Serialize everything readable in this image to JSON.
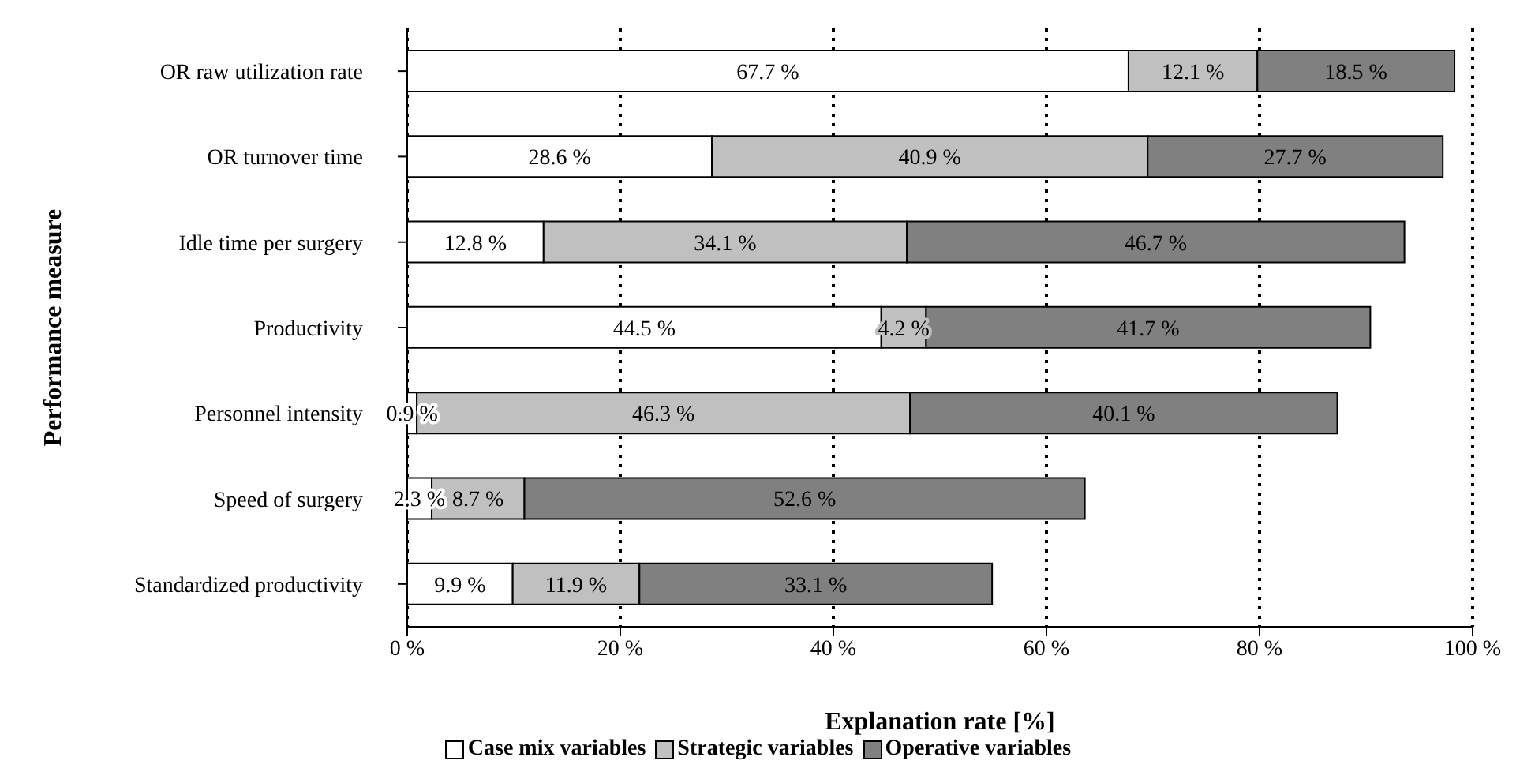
{
  "chart_data": {
    "type": "bar",
    "orientation": "horizontal",
    "stacked": true,
    "xlabel": "Explanation rate [%]",
    "ylabel": "Performance measure",
    "categories": [
      "OR raw utilization rate",
      "OR turnover time",
      "Idle time per surgery",
      "Productivity",
      "Personnel intensity",
      "Speed of surgery",
      "Standardized productivity"
    ],
    "series": [
      {
        "name": "Case mix variables",
        "color": "#ffffff",
        "values": [
          67.7,
          28.6,
          12.8,
          44.5,
          0.9,
          2.3,
          9.9
        ],
        "value_labels": [
          "67.7 %",
          "28.6 %",
          "12.8 %",
          "44.5 %",
          "0.9 %",
          "2.3 %",
          "9.9 %"
        ]
      },
      {
        "name": "Strategic variables",
        "color": "#c0c0c0",
        "values": [
          12.1,
          40.9,
          34.1,
          4.2,
          46.3,
          8.7,
          11.9
        ],
        "value_labels": [
          "12.1 %",
          "40.9 %",
          "34.1 %",
          "4.2 %",
          "46.3 %",
          "8.7 %",
          "11.9 %"
        ]
      },
      {
        "name": "Operative variables",
        "color": "#808080",
        "values": [
          18.5,
          27.7,
          46.7,
          41.7,
          40.1,
          52.6,
          33.1
        ],
        "value_labels": [
          "18.5 %",
          "27.7 %",
          "46.7 %",
          "41.7 %",
          "40.1 %",
          "52.6 %",
          "33.1 %"
        ]
      }
    ],
    "xlim": [
      0,
      100
    ],
    "xticks": [
      {
        "value": 0,
        "label": "0 %"
      },
      {
        "value": 20,
        "label": "20 %"
      },
      {
        "value": 40,
        "label": "40 %"
      },
      {
        "value": 60,
        "label": "60 %"
      },
      {
        "value": 80,
        "label": "80 %"
      },
      {
        "value": 100,
        "label": "100 %"
      }
    ],
    "grid": "x",
    "legend": "bottom"
  }
}
